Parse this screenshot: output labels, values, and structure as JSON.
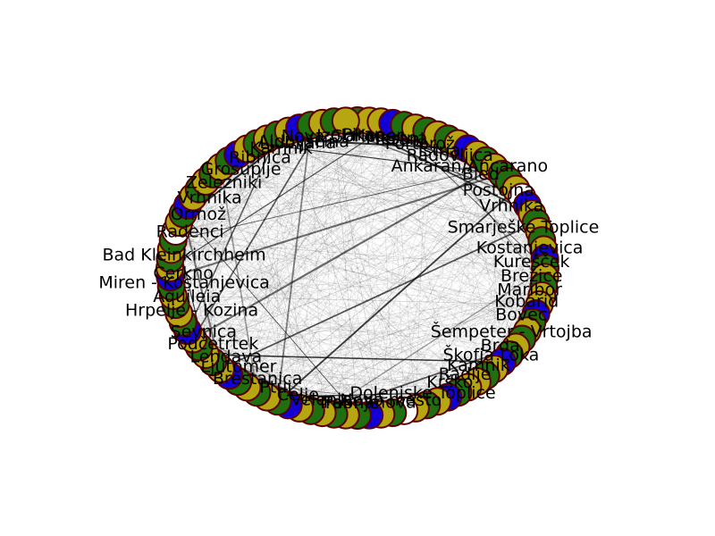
{
  "chart_data": {
    "type": "network",
    "layout": "circular",
    "node_colors": {
      "green": "#1f6e0f",
      "olive": "#b5a612",
      "blue": "#1200d6",
      "white": "#ffffff"
    },
    "node_outline_color": "#5a0000",
    "edge_color": "#000000",
    "node_color_sequence": [
      "green",
      "olive",
      "olive",
      "blue",
      "green",
      "olive",
      "green",
      "olive",
      "green",
      "olive",
      "blue",
      "olive",
      "green",
      "olive",
      "green",
      "green",
      "olive",
      "white",
      "blue",
      "olive",
      "green",
      "olive",
      "green",
      "olive",
      "blue",
      "green",
      "olive",
      "green",
      "olive",
      "olive",
      "blue",
      "green",
      "olive",
      "green",
      "olive",
      "green",
      "blue",
      "olive",
      "green",
      "olive",
      "olive",
      "green",
      "blue",
      "olive",
      "green",
      "olive",
      "white",
      "green",
      "olive",
      "blue",
      "green",
      "olive",
      "green",
      "olive",
      "green",
      "olive",
      "blue",
      "green",
      "olive",
      "green",
      "olive",
      "green",
      "blue",
      "olive",
      "green",
      "olive",
      "green",
      "olive",
      "blue",
      "green",
      "olive",
      "green",
      "olive",
      "green",
      "blue",
      "olive",
      "green",
      "olive",
      "green",
      "white",
      "olive",
      "green",
      "blue",
      "olive",
      "green",
      "olive",
      "green",
      "olive",
      "green",
      "blue",
      "olive",
      "green",
      "olive",
      "green",
      "olive",
      "blue",
      "green",
      "olive",
      "green",
      "olive"
    ],
    "labels": [
      {
        "text": "Ljubljana",
        "angle": -110
      },
      {
        "text": "Koper",
        "angle": -83
      },
      {
        "text": "Ankaran/Ancarano",
        "angle": -50
      },
      {
        "text": "Kranj",
        "angle": -75
      },
      {
        "text": "Izola",
        "angle": -97
      },
      {
        "text": "Piran",
        "angle": -88
      },
      {
        "text": "Mestna",
        "angle": -77
      },
      {
        "text": "Istria",
        "angle": -62
      },
      {
        "text": "Portorož",
        "angle": -69
      },
      {
        "text": "Radovljica",
        "angle": -58
      },
      {
        "text": "Bled",
        "angle": -45
      },
      {
        "text": "Postojna",
        "angle": -36
      },
      {
        "text": "Vrhnika",
        "angle": -28
      },
      {
        "text": "Smarješke Toplice",
        "angle": -18
      },
      {
        "text": "Kostanjevica",
        "angle": -9
      },
      {
        "text": "Kurešček",
        "angle": -3
      },
      {
        "text": "Brežice",
        "angle": 3
      },
      {
        "text": "Maribor",
        "angle": 9
      },
      {
        "text": "Kobarid",
        "angle": 14
      },
      {
        "text": "Bovec",
        "angle": 20
      },
      {
        "text": "Šempeter - Vrtojba",
        "angle": 28
      },
      {
        "text": "Brda",
        "angle": 35
      },
      {
        "text": "Škofja Loka",
        "angle": 40
      },
      {
        "text": "Kamnik",
        "angle": 46
      },
      {
        "text": "Radlje",
        "angle": 52
      },
      {
        "text": "Krško",
        "angle": 58
      },
      {
        "text": "Dolenjske Toplice",
        "angle": 68
      },
      {
        "text": "Novo mesto",
        "angle": 79
      },
      {
        "text": "Palmanova",
        "angle": 86
      },
      {
        "text": "Trebnje",
        "angle": 93
      },
      {
        "text": "Velenje",
        "angle": 102
      },
      {
        "text": "Celje",
        "angle": 110
      },
      {
        "text": "Ptuj",
        "angle": 118
      },
      {
        "text": "Brestanica",
        "angle": 125
      },
      {
        "text": "Ljutomer",
        "angle": 133
      },
      {
        "text": "Lendava",
        "angle": 139
      },
      {
        "text": "Podčetrtek",
        "angle": 146
      },
      {
        "text": "Sevnica",
        "angle": 152
      },
      {
        "text": "Hrpelje - Kozina",
        "angle": 162
      },
      {
        "text": "Aquileia",
        "angle": 168
      },
      {
        "text": "Miren - Kostanjevica",
        "angle": 174
      },
      {
        "text": "Cerkno",
        "angle": 178
      },
      {
        "text": "Bad Kleinkirchheim",
        "angle": 186
      },
      {
        "text": "Radenci",
        "angle": 196
      },
      {
        "text": "Ormož",
        "angle": 204
      },
      {
        "text": "Vrhnika",
        "angle": 212
      },
      {
        "text": "Zelezniki",
        "angle": 220
      },
      {
        "text": "Grosuplje",
        "angle": 228
      },
      {
        "text": "Ribnica",
        "angle": 236
      },
      {
        "text": "Kamnik",
        "angle": 244
      },
      {
        "text": "Ajdovščina",
        "angle": 252
      },
      {
        "text": "Nova Gorica",
        "angle": 262
      }
    ]
  }
}
